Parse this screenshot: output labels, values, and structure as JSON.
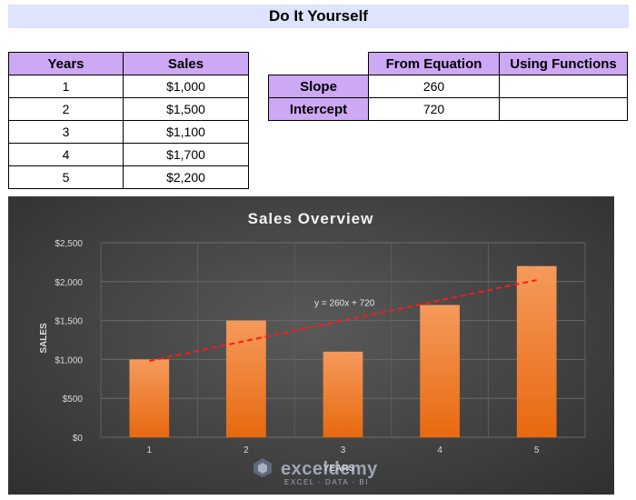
{
  "page": {
    "title": "Do It Yourself"
  },
  "sales_table": {
    "headers": [
      "Years",
      "Sales"
    ],
    "rows": [
      [
        "1",
        "$1,000"
      ],
      [
        "2",
        "$1,500"
      ],
      [
        "3",
        "$1,100"
      ],
      [
        "4",
        "$1,700"
      ],
      [
        "5",
        "$2,200"
      ]
    ]
  },
  "coef_table": {
    "headers": [
      "From Equation",
      "Using Functions"
    ],
    "rows": [
      {
        "label": "Slope",
        "from_equation": "260",
        "using_functions": ""
      },
      {
        "label": "Intercept",
        "from_equation": "720",
        "using_functions": ""
      }
    ]
  },
  "chart_data": {
    "type": "bar",
    "title": "Sales Overview",
    "xlabel": "YEARS",
    "ylabel": "SALES",
    "categories": [
      "1",
      "2",
      "3",
      "4",
      "5"
    ],
    "values": [
      1000,
      1500,
      1100,
      1700,
      2200
    ],
    "ylim": [
      0,
      2500
    ],
    "y_ticks": [
      0,
      500,
      1000,
      1500,
      2000,
      2500
    ],
    "y_tick_labels": [
      "$0",
      "$500",
      "$1,000",
      "$1,500",
      "$2,000",
      "$2,500"
    ],
    "grid": true,
    "trendline": {
      "type": "linear",
      "slope": 260,
      "intercept": 720,
      "equation_label": "y = 260x + 720",
      "color": "#ff1a1a"
    },
    "bar_color_top": "#f59a5c",
    "bar_color_bottom": "#e8690f"
  },
  "watermark": {
    "name": "exceldemy",
    "tagline": "EXCEL · DATA · BI"
  }
}
